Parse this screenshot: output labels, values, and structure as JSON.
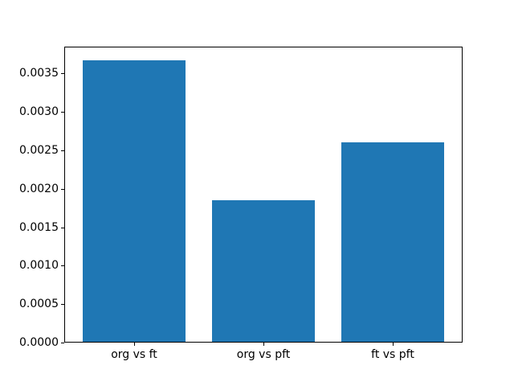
{
  "figure": {
    "background": "#ffffff",
    "frame_color": "#000000",
    "tick_label_color": "#000000"
  },
  "chart_data": {
    "type": "bar",
    "categories": [
      "org vs ft",
      "org vs pft",
      "ft vs pft"
    ],
    "values": [
      0.00367,
      0.00185,
      0.00261
    ],
    "title": "",
    "xlabel": "",
    "ylabel": "",
    "bar_color": "#1f77b4",
    "bar_width": 0.8,
    "xlim": [
      -0.54,
      2.54
    ],
    "ylim": [
      0,
      0.00385
    ],
    "yticks": [
      0.0,
      0.0005,
      0.001,
      0.0015,
      0.002,
      0.0025,
      0.003,
      0.0035
    ],
    "ytick_labels": [
      "0.0000",
      "0.0005",
      "0.0010",
      "0.0015",
      "0.0020",
      "0.0025",
      "0.0030",
      "0.0035"
    ],
    "grid": false,
    "legend": "none"
  }
}
